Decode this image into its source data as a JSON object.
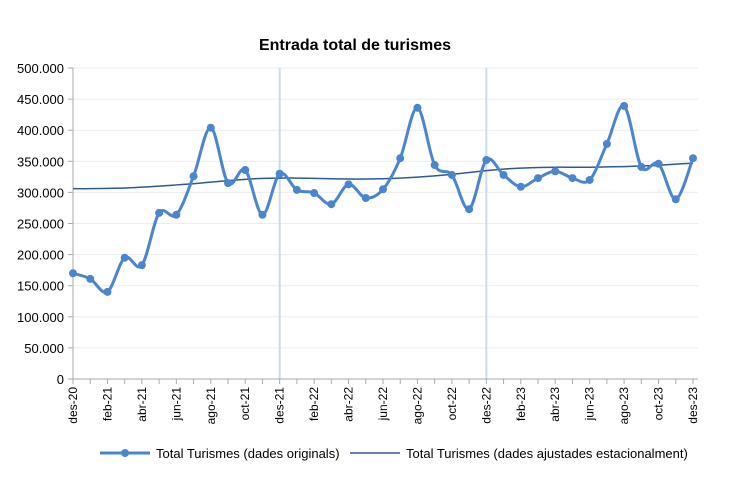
{
  "chart_data": {
    "type": "line",
    "title": "Entrada total de turismes",
    "xlabel": "",
    "ylabel": "",
    "ylim": [
      0,
      500000
    ],
    "y_ticks": [
      "0",
      "50.000",
      "100.000",
      "150.000",
      "200.000",
      "250.000",
      "300.000",
      "350.000",
      "400.000",
      "450.000",
      "500.000"
    ],
    "x": [
      "des-20",
      "gen-21",
      "feb-21",
      "mar-21",
      "abr-21",
      "mai-21",
      "jun-21",
      "jul-21",
      "ago-21",
      "set-21",
      "oct-21",
      "nov-21",
      "des-21",
      "gen-22",
      "feb-22",
      "mar-22",
      "abr-22",
      "mai-22",
      "jun-22",
      "jul-22",
      "ago-22",
      "set-22",
      "oct-22",
      "nov-22",
      "des-22",
      "gen-23",
      "feb-23",
      "mar-23",
      "abr-23",
      "mai-23",
      "jun-23",
      "jul-23",
      "ago-23",
      "set-23",
      "oct-23",
      "nov-23",
      "des-23"
    ],
    "x_tick_labels": [
      "des-20",
      "feb-21",
      "abr-21",
      "jun-21",
      "ago-21",
      "oct-21",
      "des-21",
      "feb-22",
      "abr-22",
      "jun-22",
      "ago-22",
      "oct-22",
      "des-22",
      "feb-23",
      "abr-23",
      "jun-23",
      "ago-23",
      "oct-23",
      "des-23"
    ],
    "grid": true,
    "vertical_markers": [
      "des-21",
      "des-22"
    ],
    "legend_position": "bottom",
    "series": [
      {
        "name": "Total Turismes (dades originals)",
        "color": "#4a86cf",
        "markers": true,
        "values": [
          170000,
          161000,
          140000,
          195000,
          183000,
          267000,
          264000,
          326000,
          404000,
          315000,
          336000,
          264000,
          330000,
          304000,
          299000,
          281000,
          313000,
          291000,
          305000,
          355000,
          436000,
          344000,
          328000,
          273000,
          352000,
          328000,
          309000,
          323000,
          334000,
          323000,
          320000,
          378000,
          439000,
          341000,
          346000,
          289000,
          355000
        ]
      },
      {
        "name": "Total Turismes (dades ajustades estacionalment)",
        "color": "#2f5a8f",
        "markers": false,
        "values": [
          306000,
          306000,
          306500,
          307000,
          308500,
          310000,
          312000,
          314000,
          316500,
          319000,
          321000,
          322500,
          323000,
          323000,
          322500,
          322000,
          321500,
          321500,
          322000,
          323000,
          324500,
          326500,
          329000,
          332000,
          335000,
          337500,
          339000,
          340000,
          340500,
          340500,
          340500,
          341000,
          341500,
          342500,
          343500,
          345500,
          347000
        ]
      }
    ]
  }
}
